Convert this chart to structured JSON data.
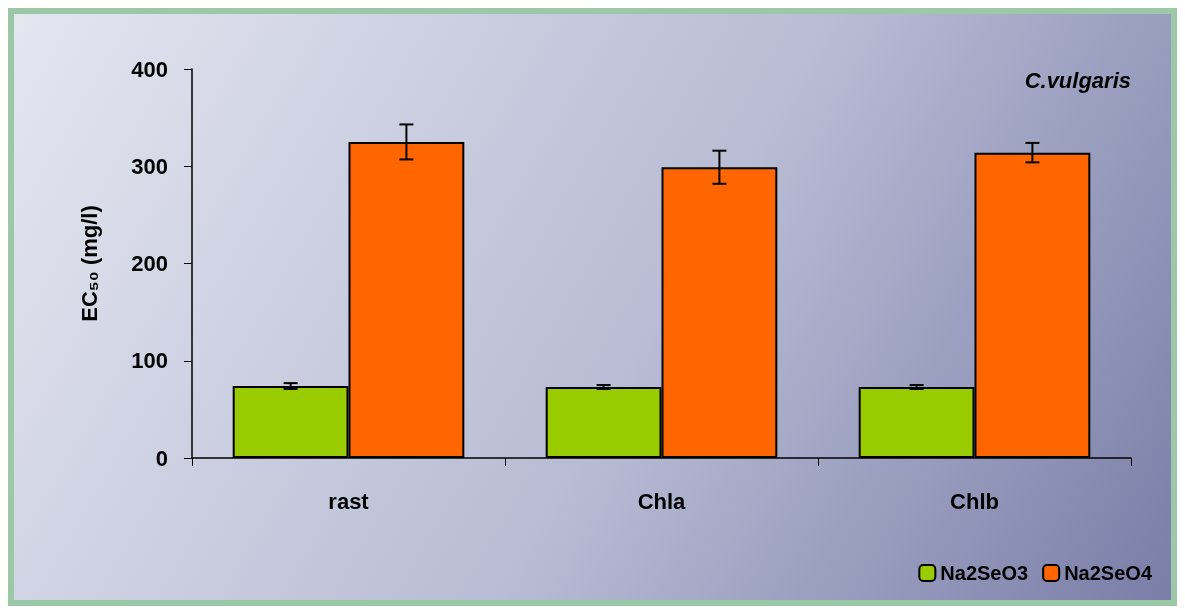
{
  "chart_data": {
    "type": "bar",
    "ylabel": "EC₅₀ (mg/l)",
    "annotations": [
      "C.vulgaris"
    ],
    "categories": [
      "rast",
      "Chla",
      "Chlb"
    ],
    "series": [
      {
        "name": "Na2SeO3",
        "color": "#99cc00",
        "values": [
          74,
          73,
          73
        ],
        "errors": [
          3,
          2,
          2
        ]
      },
      {
        "name": "Na2SeO4",
        "color": "#ff6600",
        "values": [
          325,
          299,
          314
        ],
        "errors": [
          18,
          17,
          10
        ]
      }
    ],
    "ylim": [
      0,
      400
    ],
    "yticks": [
      0,
      100,
      200,
      300,
      400
    ],
    "grid": false,
    "legend": "bottom right"
  }
}
